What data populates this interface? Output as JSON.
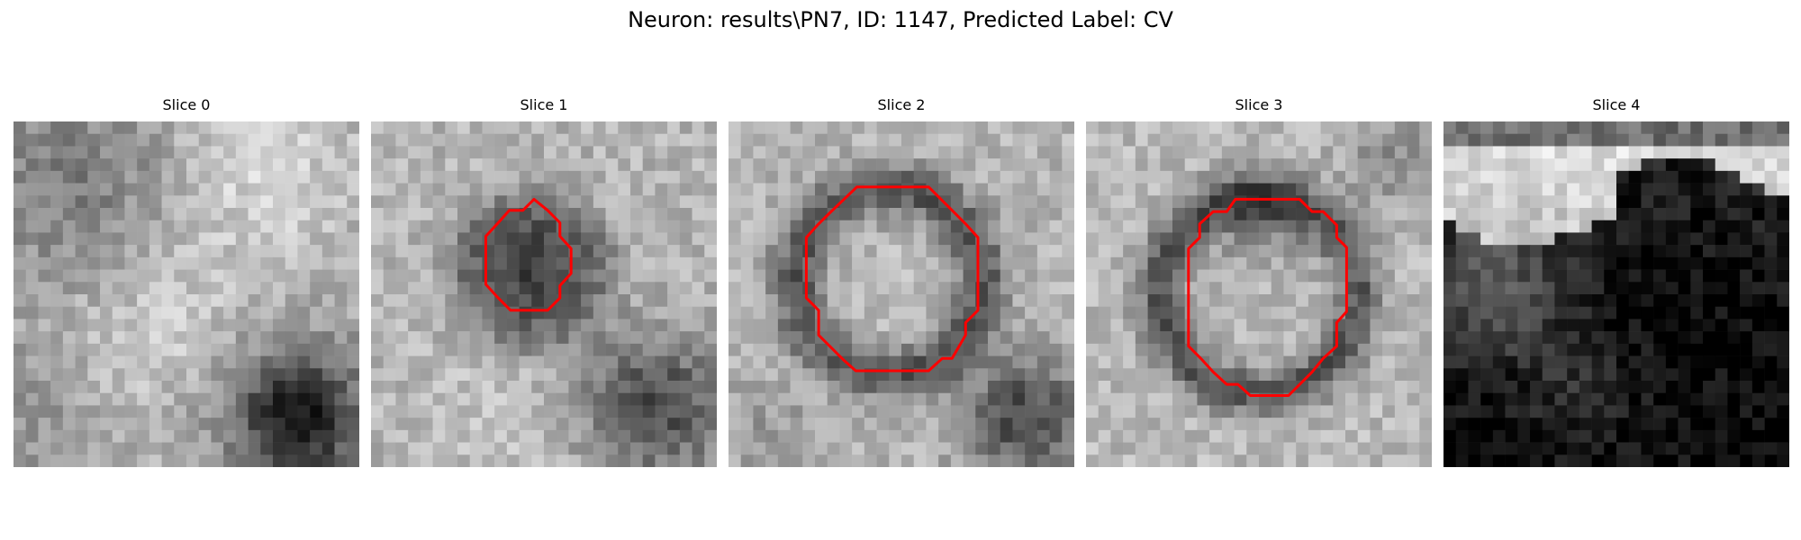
{
  "figure": {
    "title": "Neuron: results\\PN7, ID: 1147, Predicted Label: CV"
  },
  "panels": [
    {
      "title": "Slice 0",
      "contour": false
    },
    {
      "title": "Slice 1",
      "contour": true
    },
    {
      "title": "Slice 2",
      "contour": true
    },
    {
      "title": "Slice 3",
      "contour": true
    },
    {
      "title": "Slice 4",
      "contour": false
    }
  ],
  "colors": {
    "contour": "#ff0000",
    "background": "#ffffff",
    "colormap": "gray"
  }
}
